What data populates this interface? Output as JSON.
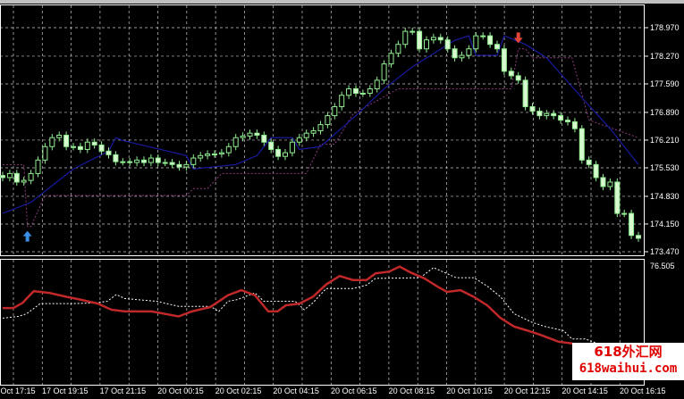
{
  "chart_data": [
    {
      "type": "candlestick",
      "price_axis_labels": [
        "178.970",
        "178.270",
        "177.590",
        "176.890",
        "176.210",
        "175.530",
        "174.830",
        "174.150",
        "173.470"
      ],
      "ylim": [
        173.47,
        178.97
      ],
      "grid": true,
      "closes": [
        175.29,
        175.39,
        175.18,
        175.22,
        175.39,
        175.72,
        176.05,
        176.27,
        176.33,
        176.05,
        176.05,
        175.98,
        176.16,
        176.09,
        175.94,
        175.85,
        175.68,
        175.68,
        175.66,
        175.72,
        175.66,
        175.77,
        175.66,
        175.66,
        175.61,
        175.55,
        175.61,
        175.77,
        175.83,
        175.87,
        175.87,
        175.9,
        176.05,
        176.27,
        176.31,
        176.38,
        176.33,
        176.16,
        175.98,
        175.81,
        175.9,
        176.16,
        176.27,
        176.38,
        176.44,
        176.59,
        176.81,
        177.03,
        177.31,
        177.47,
        177.36,
        177.36,
        177.47,
        177.68,
        178.08,
        178.34,
        178.56,
        178.88,
        178.88,
        178.45,
        178.67,
        178.73,
        178.67,
        178.45,
        178.23,
        178.29,
        178.45,
        178.77,
        178.77,
        178.56,
        178.45,
        177.9,
        177.79,
        177.68,
        177.03,
        176.92,
        176.81,
        176.86,
        176.81,
        176.7,
        176.66,
        176.49,
        175.72,
        175.61,
        175.29,
        175.07,
        175.18,
        174.41,
        174.41,
        173.87,
        173.8
      ],
      "blue_line": [
        [
          0,
          174.41
        ],
        [
          4,
          174.68
        ],
        [
          10,
          175.5
        ],
        [
          15,
          175.94
        ],
        [
          16,
          176.27
        ],
        [
          17,
          176.2
        ],
        [
          26,
          175.83
        ],
        [
          27,
          175.5
        ],
        [
          33,
          175.61
        ],
        [
          36,
          175.83
        ],
        [
          38,
          176.27
        ],
        [
          41,
          176.27
        ],
        [
          42,
          175.98
        ],
        [
          45,
          176.05
        ],
        [
          50,
          176.81
        ],
        [
          54,
          177.47
        ],
        [
          58,
          178.01
        ],
        [
          64,
          178.66
        ],
        [
          66,
          178.77
        ],
        [
          67,
          178.29
        ],
        [
          70,
          178.29
        ],
        [
          71,
          178.77
        ],
        [
          74,
          178.56
        ],
        [
          77,
          178.23
        ],
        [
          82,
          177.25
        ],
        [
          86,
          176.49
        ],
        [
          90,
          175.61
        ]
      ],
      "purple_dotted_line": [
        [
          0,
          175.61
        ],
        [
          3,
          175.61
        ],
        [
          3.5,
          174.09
        ],
        [
          4,
          174.09
        ],
        [
          6,
          174.85
        ],
        [
          26,
          174.85
        ],
        [
          27,
          175.02
        ],
        [
          29,
          175.02
        ],
        [
          31,
          175.39
        ],
        [
          43,
          175.39
        ],
        [
          45,
          176.11
        ],
        [
          47,
          176.11
        ],
        [
          49.6,
          176.85
        ],
        [
          56,
          177.47
        ],
        [
          72,
          177.47
        ],
        [
          73,
          178.45
        ],
        [
          74,
          178.45
        ],
        [
          75,
          178.23
        ],
        [
          80.6,
          178.23
        ],
        [
          83,
          176.7
        ],
        [
          90,
          176.27
        ]
      ],
      "buy_arrow": {
        "index": 3.5,
        "price": 173.85,
        "color": "#3a8ee6"
      },
      "sell_arrow": {
        "index": 73,
        "price": 178.72,
        "color": "#e0453a"
      },
      "colors": {
        "candle": "#90ee90",
        "blue_line": "#1a1aa0",
        "purple_line": "#8a3a7a",
        "grid": "#c8c8c8"
      }
    },
    {
      "type": "line",
      "top_label": "76.505",
      "ylim": [
        41,
        76.505
      ],
      "red_line": [
        [
          0,
          63.5
        ],
        [
          1.5,
          63.5
        ],
        [
          2.8,
          65.0
        ],
        [
          4.4,
          68.5
        ],
        [
          6.6,
          68.0
        ],
        [
          9.1,
          66.8
        ],
        [
          11,
          66.0
        ],
        [
          13.5,
          64.8
        ],
        [
          15.4,
          63.0
        ],
        [
          17.3,
          62.5
        ],
        [
          21.1,
          62.5
        ],
        [
          24.9,
          61.0
        ],
        [
          26.8,
          62.5
        ],
        [
          29.4,
          63.8
        ],
        [
          31.9,
          67.3
        ],
        [
          33.8,
          68.8
        ],
        [
          35.7,
          67.3
        ],
        [
          37.6,
          62.5
        ],
        [
          38.9,
          62.5
        ],
        [
          40.1,
          64.3
        ],
        [
          42,
          64.8
        ],
        [
          43.9,
          66.8
        ],
        [
          45.8,
          70.5
        ],
        [
          47.7,
          73.0
        ],
        [
          49.6,
          71.8
        ],
        [
          51.5,
          71.8
        ],
        [
          52.8,
          73.8
        ],
        [
          54.7,
          74.3
        ],
        [
          56.2,
          75.8
        ],
        [
          57.8,
          74.0
        ],
        [
          59.7,
          72.3
        ],
        [
          61.6,
          69.8
        ],
        [
          62.9,
          68.3
        ],
        [
          64.8,
          68.8
        ],
        [
          66.7,
          66.8
        ],
        [
          68.6,
          64.3
        ],
        [
          70.5,
          60.5
        ],
        [
          72.4,
          58.0
        ],
        [
          74.3,
          56.8
        ],
        [
          76.2,
          55.5
        ],
        [
          78.7,
          53.5
        ],
        [
          80.6,
          53.0
        ],
        [
          82.5,
          50.5
        ],
        [
          83.8,
          48.0
        ]
      ],
      "white_dotted_line": [
        [
          0,
          60.5
        ],
        [
          2.2,
          61.0
        ],
        [
          3.4,
          61.8
        ],
        [
          5.3,
          64.8
        ],
        [
          9.7,
          64.8
        ],
        [
          12.9,
          65.0
        ],
        [
          14.8,
          65.5
        ],
        [
          16.1,
          67.5
        ],
        [
          17.3,
          66.3
        ],
        [
          21.8,
          65.5
        ],
        [
          24.9,
          64.0
        ],
        [
          29.4,
          64.0
        ],
        [
          30.6,
          62.5
        ],
        [
          31.9,
          65.5
        ],
        [
          33.2,
          66.0
        ],
        [
          35.7,
          68.0
        ],
        [
          37,
          65.5
        ],
        [
          41.4,
          65.5
        ],
        [
          42.7,
          63.0
        ],
        [
          43.9,
          65.0
        ],
        [
          45.8,
          69.3
        ],
        [
          49.6,
          69.3
        ],
        [
          51.5,
          70.3
        ],
        [
          52.8,
          72.3
        ],
        [
          59.1,
          72.5
        ],
        [
          61,
          75.5
        ],
        [
          64.2,
          72.5
        ],
        [
          66.7,
          72.5
        ],
        [
          68.6,
          70.0
        ],
        [
          70.5,
          66.8
        ],
        [
          72.4,
          61.8
        ],
        [
          74.9,
          59.3
        ],
        [
          76.8,
          58.0
        ],
        [
          79.4,
          56.8
        ],
        [
          80.6,
          54.3
        ],
        [
          82.5,
          54.3
        ],
        [
          84.2,
          53.0
        ],
        [
          87,
          50.5
        ]
      ],
      "colors": {
        "red_line": "#c0282a",
        "white_line": "#ffffff"
      }
    }
  ],
  "time_axis": [
    "17 Oct 17:15",
    "17 Oct 19:15",
    "17 Oct 21:15",
    "20 Oct 00:15",
    "20 Oct 02:15",
    "20 Oct 04:15",
    "20 Oct 06:15",
    "20 Oct 08:15",
    "20 Oct 10:15",
    "20 Oct 12:15",
    "20 Oct 14:15",
    "20 Oct 16:15"
  ],
  "watermark": {
    "line1": "618外汇网",
    "line2": "618waihui.com"
  }
}
